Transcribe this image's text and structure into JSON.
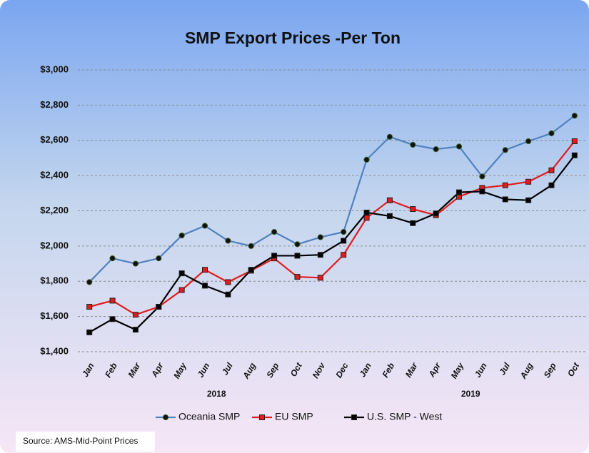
{
  "chart_data": {
    "type": "line",
    "title": "SMP Export Prices -Per Ton",
    "source": "Source: AMS-Mid-Point Prices",
    "categories": [
      "Jan",
      "Feb",
      "Mar",
      "Apr",
      "May",
      "Jun",
      "Jul",
      "Aug",
      "Sep",
      "Oct",
      "Nov",
      "Dec",
      "Jan",
      "Feb",
      "Mar",
      "Apr",
      "May",
      "Jun",
      "Jul",
      "Aug",
      "Sep",
      "Oct"
    ],
    "x_groups": [
      {
        "label": "2018",
        "span": 12
      },
      {
        "label": "2019",
        "span": 10
      }
    ],
    "series": [
      {
        "name": "Oceania SMP",
        "color": "#4f81bd",
        "marker": "circle",
        "values": [
          1795,
          1930,
          1900,
          1930,
          2060,
          2115,
          2030,
          2000,
          2080,
          2010,
          2050,
          2080,
          2490,
          2620,
          2575,
          2550,
          2565,
          2395,
          2545,
          2595,
          2640,
          2740
        ]
      },
      {
        "name": "EU SMP",
        "color": "#e41a1c",
        "marker": "square",
        "values": [
          1655,
          1690,
          1610,
          1655,
          1750,
          1865,
          1795,
          1860,
          1930,
          1825,
          1820,
          1950,
          2160,
          2260,
          2210,
          2175,
          2280,
          2330,
          2345,
          2365,
          2430,
          2595
        ]
      },
      {
        "name": "U.S. SMP - West",
        "color": "#000000",
        "marker": "square",
        "values": [
          1510,
          1585,
          1525,
          1655,
          1845,
          1775,
          1725,
          1865,
          1945,
          1945,
          1950,
          2030,
          2190,
          2170,
          2130,
          2185,
          2305,
          2310,
          2265,
          2260,
          2345,
          2515
        ]
      }
    ],
    "ylim": [
      1400,
      3000
    ],
    "yticks": [
      {
        "value": 1400,
        "label": "$1,400"
      },
      {
        "value": 1600,
        "label": "$1,600"
      },
      {
        "value": 1800,
        "label": "$1,800"
      },
      {
        "value": 2000,
        "label": "$2,000"
      },
      {
        "value": 2200,
        "label": "$2,200"
      },
      {
        "value": 2400,
        "label": "$2,400"
      },
      {
        "value": 2600,
        "label": "$2,600"
      },
      {
        "value": 2800,
        "label": "$2,800"
      },
      {
        "value": 3000,
        "label": "$3,000"
      }
    ],
    "grid": true,
    "legend": "bottom"
  }
}
